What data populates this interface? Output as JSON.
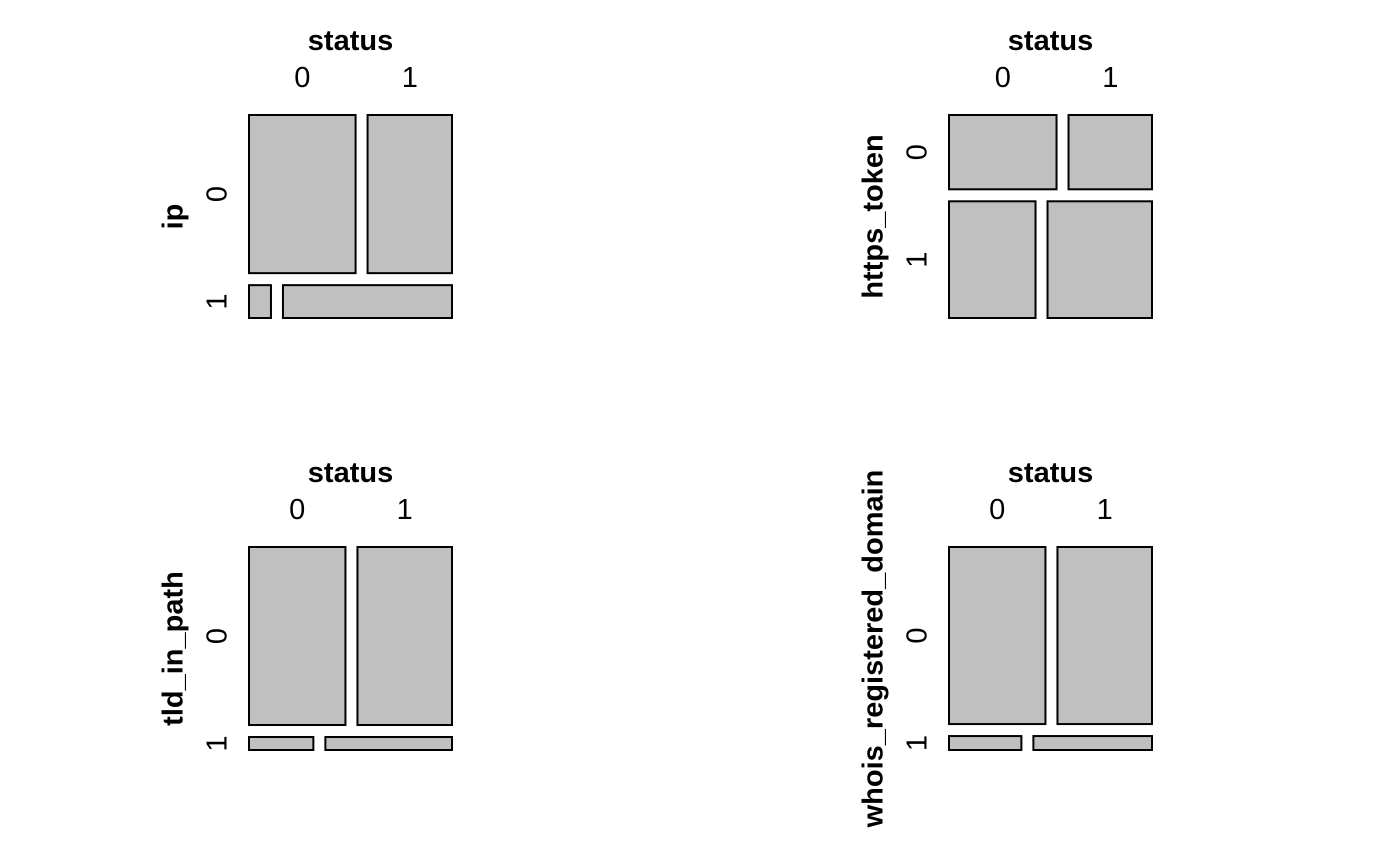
{
  "chart_data": [
    {
      "type": "mosaic",
      "xlabel": "status",
      "ylabel": "ip",
      "x_categories": [
        "0",
        "1"
      ],
      "y_categories": [
        "0",
        "1"
      ],
      "row_proportions": [
        0.828,
        0.172
      ],
      "cells": [
        {
          "row": "0",
          "col": "0",
          "share_of_row": 0.558
        },
        {
          "row": "0",
          "col": "1",
          "share_of_row": 0.442
        },
        {
          "row": "1",
          "col": "0",
          "share_of_row": 0.115
        },
        {
          "row": "1",
          "col": "1",
          "share_of_row": 0.885
        }
      ]
    },
    {
      "type": "mosaic",
      "xlabel": "status",
      "ylabel": "https_token",
      "x_categories": [
        "0",
        "1"
      ],
      "y_categories": [
        "0",
        "1"
      ],
      "row_proportions": [
        0.389,
        0.611
      ],
      "cells": [
        {
          "row": "0",
          "col": "0",
          "share_of_row": 0.563
        },
        {
          "row": "0",
          "col": "1",
          "share_of_row": 0.437
        },
        {
          "row": "1",
          "col": "0",
          "share_of_row": 0.453
        },
        {
          "row": "1",
          "col": "1",
          "share_of_row": 0.547
        }
      ]
    },
    {
      "type": "mosaic",
      "xlabel": "status",
      "ylabel": "tld_in_path",
      "x_categories": [
        "0",
        "1"
      ],
      "y_categories": [
        "0",
        "1"
      ],
      "row_proportions": [
        0.932,
        0.068
      ],
      "cells": [
        {
          "row": "0",
          "col": "0",
          "share_of_row": 0.505
        },
        {
          "row": "0",
          "col": "1",
          "share_of_row": 0.495
        },
        {
          "row": "1",
          "col": "0",
          "share_of_row": 0.337
        },
        {
          "row": "1",
          "col": "1",
          "share_of_row": 0.663
        }
      ]
    },
    {
      "type": "mosaic",
      "xlabel": "status",
      "ylabel": "whois_registered_domain",
      "x_categories": [
        "0",
        "1"
      ],
      "y_categories": [
        "0",
        "1"
      ],
      "row_proportions": [
        0.927,
        0.073
      ],
      "cells": [
        {
          "row": "0",
          "col": "0",
          "share_of_row": 0.505
        },
        {
          "row": "0",
          "col": "1",
          "share_of_row": 0.495
        },
        {
          "row": "1",
          "col": "0",
          "share_of_row": 0.379
        },
        {
          "row": "1",
          "col": "1",
          "share_of_row": 0.621
        }
      ]
    }
  ]
}
